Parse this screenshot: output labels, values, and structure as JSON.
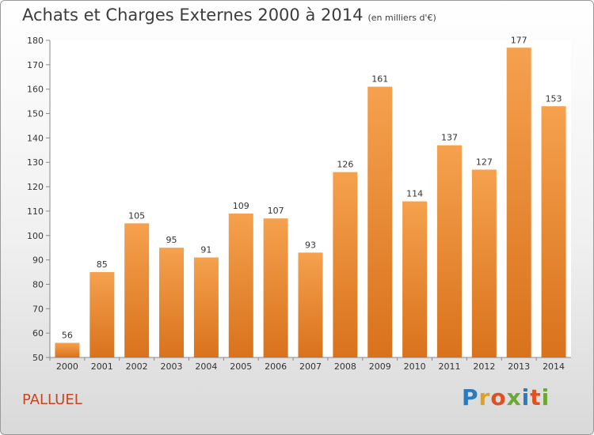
{
  "title": "Achats et Charges Externes 2000 à 2014",
  "subtitle": "(en milliers d'€)",
  "commune": "PALLUEL",
  "logo": {
    "text": "Proxiti",
    "letters": [
      "P",
      "r",
      "o",
      "x",
      "i",
      "t",
      "i"
    ],
    "colors": [
      "#2a7ac0",
      "#e0a020",
      "#e05020",
      "#6aaa30",
      "#2a7ac0",
      "#e05020",
      "#6aaa30"
    ]
  },
  "colors": {
    "bar_top": "#f5a14e",
    "bar_bottom": "#d9721c",
    "axis": "#888888",
    "grid_bg": "#ffffff"
  },
  "chart_data": {
    "type": "bar",
    "title": "Achats et Charges Externes 2000 à 2014",
    "subtitle": "(en milliers d'€)",
    "categories": [
      "2000",
      "2001",
      "2002",
      "2003",
      "2004",
      "2005",
      "2006",
      "2007",
      "2008",
      "2009",
      "2010",
      "2011",
      "2012",
      "2013",
      "2014"
    ],
    "values": [
      56,
      85,
      105,
      95,
      91,
      109,
      107,
      93,
      126,
      161,
      114,
      137,
      127,
      177,
      153
    ],
    "ylim": [
      50,
      180
    ],
    "yticks": [
      50,
      60,
      70,
      80,
      90,
      100,
      110,
      120,
      130,
      140,
      150,
      160,
      170,
      180
    ],
    "grid": false,
    "legend": "none"
  }
}
